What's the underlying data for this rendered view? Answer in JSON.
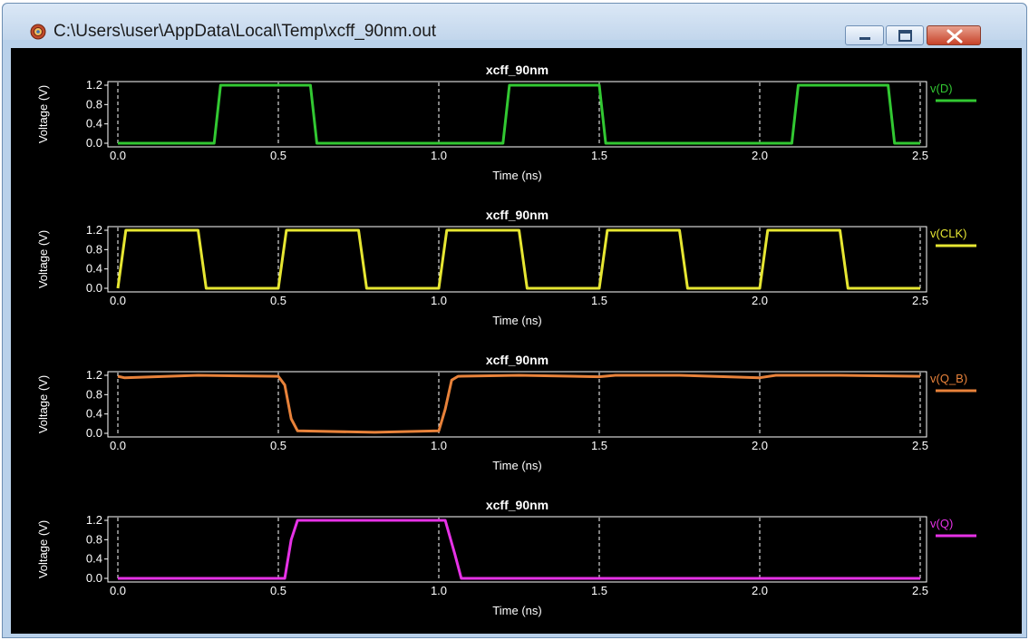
{
  "window": {
    "title": "C:\\Users\\user\\AppData\\Local\\Temp\\xcff_90nm.out",
    "icon": "app-gear-icon",
    "controls": [
      "minimize",
      "maximize",
      "close"
    ]
  },
  "colors": {
    "plot_background": "#000000",
    "frame": "#ffffff",
    "grid": "#ffffff",
    "text": "#ffffff",
    "v_D": "#32c832",
    "v_CLK": "#e6e632",
    "v_Q_B": "#e8823a",
    "v_Q": "#e632e6"
  },
  "chart_data": [
    {
      "type": "line",
      "title": "xcff_90nm",
      "xlabel": "Time (ns)",
      "ylabel": "Voltage (V)",
      "xlim": [
        0.0,
        2.5
      ],
      "ylim": [
        0.0,
        1.2
      ],
      "xticks": [
        "0.0",
        "0.5",
        "1.0",
        "1.5",
        "2.0",
        "2.5"
      ],
      "yticks": [
        "1.2",
        "0.8",
        "0.4",
        "0.0"
      ],
      "grid": "vertical dashed",
      "series": [
        {
          "name": "v(D)",
          "color": "#32c832",
          "points": [
            [
              0.0,
              0.0
            ],
            [
              0.3,
              0.0
            ],
            [
              0.32,
              1.2
            ],
            [
              0.6,
              1.2
            ],
            [
              0.62,
              0.0
            ],
            [
              1.2,
              0.0
            ],
            [
              1.22,
              1.2
            ],
            [
              1.5,
              1.2
            ],
            [
              1.52,
              0.0
            ],
            [
              2.1,
              0.0
            ],
            [
              2.12,
              1.2
            ],
            [
              2.4,
              1.2
            ],
            [
              2.42,
              0.0
            ],
            [
              2.5,
              0.0
            ]
          ]
        }
      ]
    },
    {
      "type": "line",
      "title": "xcff_90nm",
      "xlabel": "Time (ns)",
      "ylabel": "Voltage (V)",
      "xlim": [
        0.0,
        2.5
      ],
      "ylim": [
        0.0,
        1.2
      ],
      "xticks": [
        "0.0",
        "0.5",
        "1.0",
        "1.5",
        "2.0",
        "2.5"
      ],
      "yticks": [
        "1.2",
        "0.8",
        "0.4",
        "0.0"
      ],
      "grid": "vertical dashed",
      "series": [
        {
          "name": "v(CLK)",
          "color": "#e6e632",
          "points": [
            [
              0.0,
              0.0
            ],
            [
              0.025,
              1.2
            ],
            [
              0.25,
              1.2
            ],
            [
              0.275,
              0.0
            ],
            [
              0.5,
              0.0
            ],
            [
              0.525,
              1.2
            ],
            [
              0.75,
              1.2
            ],
            [
              0.775,
              0.0
            ],
            [
              1.0,
              0.0
            ],
            [
              1.025,
              1.2
            ],
            [
              1.25,
              1.2
            ],
            [
              1.275,
              0.0
            ],
            [
              1.5,
              0.0
            ],
            [
              1.525,
              1.2
            ],
            [
              1.75,
              1.2
            ],
            [
              1.775,
              0.0
            ],
            [
              2.0,
              0.0
            ],
            [
              2.025,
              1.2
            ],
            [
              2.25,
              1.2
            ],
            [
              2.275,
              0.0
            ],
            [
              2.5,
              0.0
            ]
          ]
        }
      ]
    },
    {
      "type": "line",
      "title": "xcff_90nm",
      "xlabel": "Time (ns)",
      "ylabel": "Voltage (V)",
      "xlim": [
        0.0,
        2.5
      ],
      "ylim": [
        0.0,
        1.2
      ],
      "xticks": [
        "0.0",
        "0.5",
        "1.0",
        "1.5",
        "2.0",
        "2.5"
      ],
      "yticks": [
        "1.2",
        "0.8",
        "0.4",
        "0.0"
      ],
      "grid": "vertical dashed",
      "series": [
        {
          "name": "v(Q_B)",
          "color": "#e8823a",
          "points": [
            [
              0.0,
              1.18
            ],
            [
              0.02,
              1.15
            ],
            [
              0.25,
              1.2
            ],
            [
              0.5,
              1.18
            ],
            [
              0.52,
              1.0
            ],
            [
              0.54,
              0.3
            ],
            [
              0.56,
              0.05
            ],
            [
              0.8,
              0.02
            ],
            [
              1.0,
              0.05
            ],
            [
              1.02,
              0.5
            ],
            [
              1.04,
              1.1
            ],
            [
              1.06,
              1.18
            ],
            [
              1.25,
              1.2
            ],
            [
              1.5,
              1.17
            ],
            [
              1.55,
              1.2
            ],
            [
              1.75,
              1.2
            ],
            [
              2.0,
              1.15
            ],
            [
              2.05,
              1.2
            ],
            [
              2.25,
              1.2
            ],
            [
              2.5,
              1.18
            ]
          ]
        }
      ]
    },
    {
      "type": "line",
      "title": "xcff_90nm",
      "xlabel": "Time (ns)",
      "ylabel": "Voltage (V)",
      "xlim": [
        0.0,
        2.5
      ],
      "ylim": [
        0.0,
        1.2
      ],
      "xticks": [
        "0.0",
        "0.5",
        "1.0",
        "1.5",
        "2.0",
        "2.5"
      ],
      "yticks": [
        "1.2",
        "0.8",
        "0.4",
        "0.0"
      ],
      "grid": "vertical dashed",
      "series": [
        {
          "name": "v(Q)",
          "color": "#e632e6",
          "points": [
            [
              0.0,
              0.0
            ],
            [
              0.52,
              0.0
            ],
            [
              0.54,
              0.8
            ],
            [
              0.56,
              1.2
            ],
            [
              1.02,
              1.2
            ],
            [
              1.05,
              0.5
            ],
            [
              1.07,
              0.0
            ],
            [
              2.5,
              0.0
            ]
          ]
        }
      ]
    }
  ]
}
